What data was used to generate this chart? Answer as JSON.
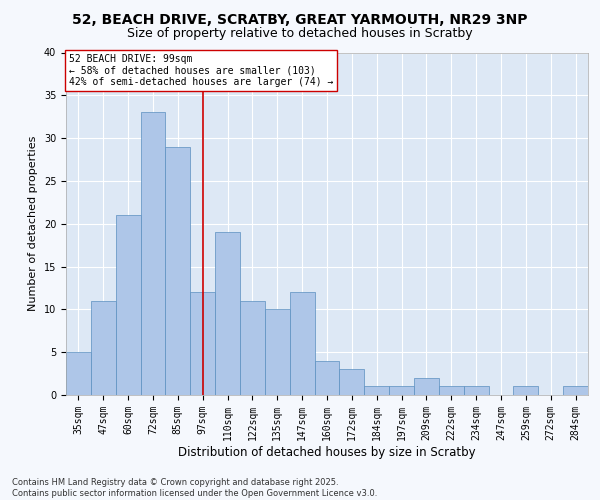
{
  "title1": "52, BEACH DRIVE, SCRATBY, GREAT YARMOUTH, NR29 3NP",
  "title2": "Size of property relative to detached houses in Scratby",
  "xlabel": "Distribution of detached houses by size in Scratby",
  "ylabel": "Number of detached properties",
  "bins": [
    "35sqm",
    "47sqm",
    "60sqm",
    "72sqm",
    "85sqm",
    "97sqm",
    "110sqm",
    "122sqm",
    "135sqm",
    "147sqm",
    "160sqm",
    "172sqm",
    "184sqm",
    "197sqm",
    "209sqm",
    "222sqm",
    "234sqm",
    "247sqm",
    "259sqm",
    "272sqm",
    "284sqm"
  ],
  "bar_values": [
    5,
    11,
    21,
    33,
    29,
    12,
    19,
    11,
    10,
    12,
    4,
    3,
    1,
    1,
    2,
    1,
    1,
    0,
    1,
    0,
    1
  ],
  "bar_color": "#aec6e8",
  "bar_edge_color": "#5a8fc0",
  "vline_x": 5.0,
  "vline_color": "#cc0000",
  "annotation_text": "52 BEACH DRIVE: 99sqm\n← 58% of detached houses are smaller (103)\n42% of semi-detached houses are larger (74) →",
  "annotation_box_color": "#ffffff",
  "annotation_box_edge": "#cc0000",
  "ylim": [
    0,
    40
  ],
  "yticks": [
    0,
    5,
    10,
    15,
    20,
    25,
    30,
    35,
    40
  ],
  "background_color": "#dde8f5",
  "grid_color": "#ffffff",
  "fig_background": "#f5f8fd",
  "footer": "Contains HM Land Registry data © Crown copyright and database right 2025.\nContains public sector information licensed under the Open Government Licence v3.0.",
  "title1_fontsize": 10,
  "title2_fontsize": 9,
  "xlabel_fontsize": 8.5,
  "ylabel_fontsize": 8,
  "tick_fontsize": 7,
  "annotation_fontsize": 7,
  "footer_fontsize": 6
}
